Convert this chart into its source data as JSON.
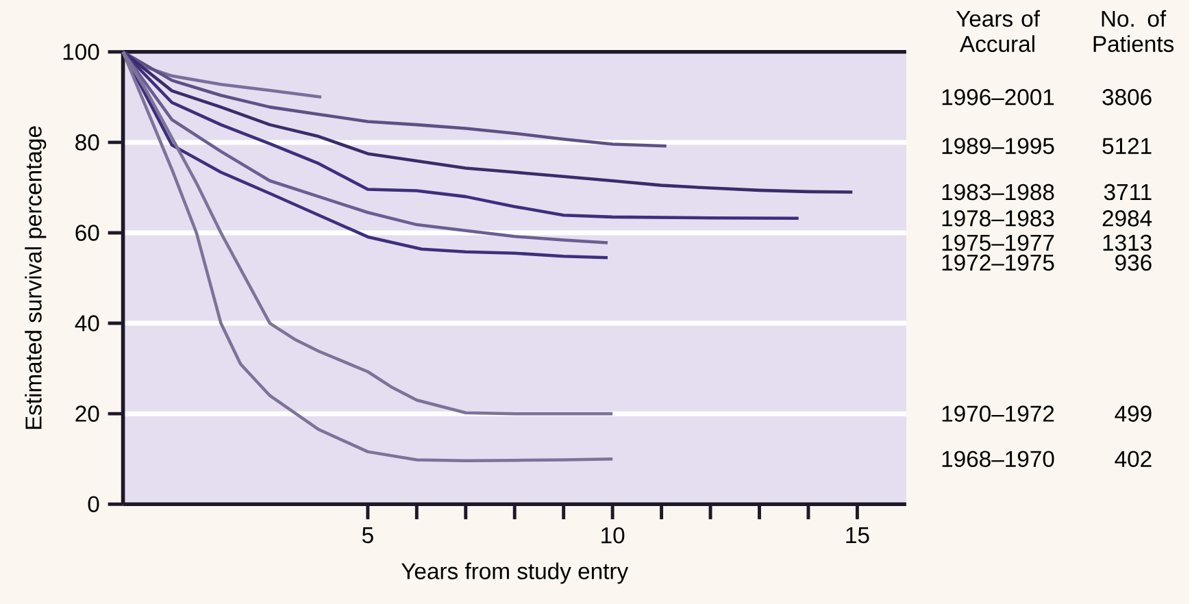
{
  "chart_data": {
    "type": "line",
    "xlabel": "Years from study entry",
    "ylabel": "Estimated survival percentage",
    "legend_title": "Years of Accural",
    "annotations": [
      "No. of Patients",
      "3806",
      "5121",
      "3711",
      "2984",
      "1313",
      "936",
      "499",
      "402"
    ],
    "xlim": [
      0,
      16
    ],
    "ylim": [
      0,
      100
    ],
    "xticks": [
      5,
      10,
      15
    ],
    "yticks": [
      0,
      20,
      40,
      60,
      80,
      100
    ],
    "grid": "y",
    "series": [
      {
        "name": "1996–2001",
        "color": "#7a6e9c",
        "x": [
          0,
          0.5,
          1,
          2,
          3,
          4.05
        ],
        "values": [
          100,
          96.5,
          94.7,
          92.8,
          91.5,
          90
        ]
      },
      {
        "name": "1989–1995",
        "color": "#5e5085",
        "x": [
          0,
          1,
          2,
          3,
          4,
          5,
          6,
          7,
          8,
          9,
          10,
          11.1
        ],
        "values": [
          100,
          93.7,
          90.4,
          87.8,
          86.2,
          84.6,
          83.9,
          83.1,
          82,
          80.7,
          79.6,
          79.2
        ]
      },
      {
        "name": "1983–1988",
        "color": "#3a2c6a",
        "x": [
          0,
          1,
          2,
          3,
          4,
          5,
          6,
          7,
          8,
          10,
          11,
          12,
          13,
          14,
          14.9
        ],
        "values": [
          100,
          91.4,
          87.8,
          83.9,
          81.3,
          77.5,
          75.9,
          74.3,
          73.4,
          71.5,
          70.5,
          69.9,
          69.4,
          69.1,
          69
        ]
      },
      {
        "name": "1978–1983",
        "color": "#3d2f7c",
        "x": [
          0,
          1,
          2,
          3,
          4,
          5,
          6,
          7,
          8,
          9,
          10,
          12,
          13.8
        ],
        "values": [
          100,
          88.8,
          83.9,
          79.7,
          75.3,
          69.6,
          69.3,
          68,
          65.8,
          63.9,
          63.5,
          63.3,
          63.2
        ]
      },
      {
        "name": "1975–1977",
        "color": "#6a5e92",
        "x": [
          0,
          1,
          2,
          3,
          4,
          5,
          6,
          7,
          8,
          9,
          9.9
        ],
        "values": [
          100,
          85,
          78,
          71.5,
          68,
          64.5,
          61.8,
          60.5,
          59.2,
          58.4,
          57.8
        ]
      },
      {
        "name": "1972–1975",
        "color": "#3d2f7c",
        "x": [
          0,
          1,
          2,
          3,
          4,
          5,
          6.1,
          7,
          8,
          9,
          9.9
        ],
        "values": [
          100,
          79.4,
          73.4,
          68.7,
          63.9,
          59.1,
          56.4,
          55.8,
          55.5,
          54.8,
          54.5
        ]
      },
      {
        "name": "1970–1972",
        "color": "#7d7399",
        "x": [
          0,
          0.5,
          1,
          1.5,
          2,
          2.5,
          3,
          3.5,
          4,
          5,
          5.5,
          6,
          7,
          8,
          9,
          10
        ],
        "values": [
          100,
          91,
          81,
          71,
          60,
          50,
          40,
          36.5,
          33.8,
          29.3,
          25.8,
          23,
          20.2,
          20,
          20,
          20
        ]
      },
      {
        "name": "1968–1970",
        "color": "#7d7399",
        "x": [
          0,
          0.5,
          1,
          1.5,
          2,
          2.4,
          3,
          4,
          5,
          6,
          7,
          8,
          9,
          10
        ],
        "values": [
          100,
          87,
          74,
          60,
          40,
          31,
          24,
          16.5,
          11.6,
          9.8,
          9.6,
          9.7,
          9.8,
          10
        ]
      }
    ]
  }
}
